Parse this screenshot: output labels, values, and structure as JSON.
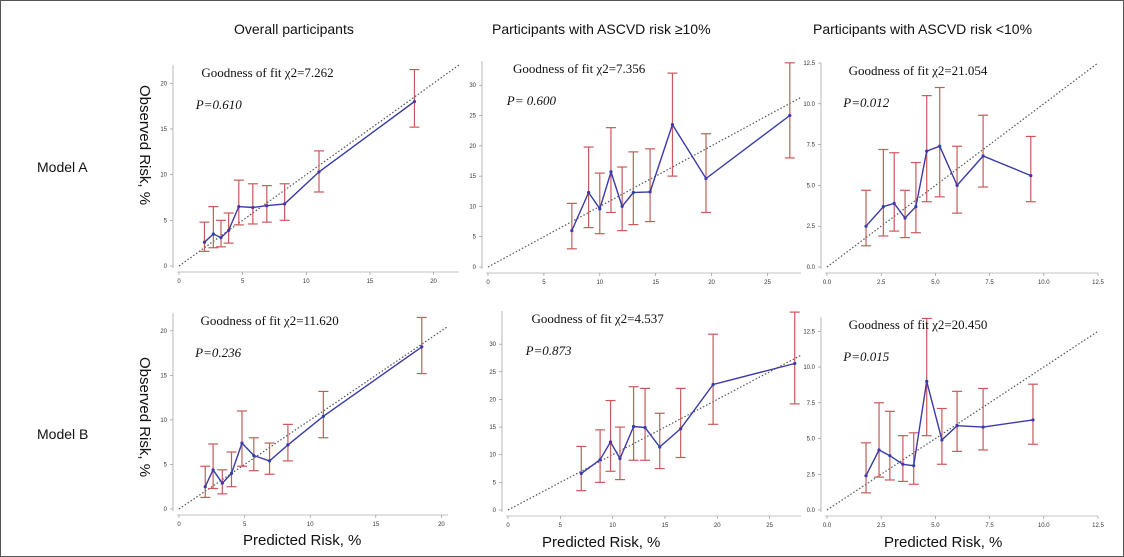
{
  "column_titles": [
    "Overall participants",
    "Participants with ASCVD risk ≥10%",
    "Participants with ASCVD risk <10%"
  ],
  "row_labels": [
    "Model A",
    "Model B"
  ],
  "ylabel": "Observed Risk, %",
  "xlabel": "Predicted Risk, %",
  "colors": {
    "line": "#3a3aa8",
    "errorbar": "#c95a5a",
    "diagonal": "#555555"
  },
  "chart_data": [
    {
      "type": "line",
      "row": 0,
      "col": 0,
      "gof": "Goodness of fit χ2=7.262",
      "p": "P=0.610",
      "xlim": [
        0,
        22
      ],
      "ylim": [
        0,
        22
      ],
      "xticks": [
        0,
        5,
        10,
        15,
        20
      ],
      "yticks": [
        0,
        5,
        10,
        15,
        20
      ],
      "points": [
        {
          "x": 2.0,
          "y": 2.6,
          "lo": 1.6,
          "hi": 4.8
        },
        {
          "x": 2.7,
          "y": 3.5,
          "lo": 2.0,
          "hi": 6.5
        },
        {
          "x": 3.3,
          "y": 3.1,
          "lo": 2.1,
          "hi": 5.0
        },
        {
          "x": 3.9,
          "y": 3.9,
          "lo": 2.5,
          "hi": 5.8
        },
        {
          "x": 4.7,
          "y": 6.5,
          "lo": 4.5,
          "hi": 9.4
        },
        {
          "x": 5.8,
          "y": 6.4,
          "lo": 4.6,
          "hi": 9.0
        },
        {
          "x": 6.9,
          "y": 6.6,
          "lo": 4.8,
          "hi": 8.8
        },
        {
          "x": 8.3,
          "y": 6.8,
          "lo": 5.0,
          "hi": 9.0
        },
        {
          "x": 11.0,
          "y": 10.3,
          "lo": 8.1,
          "hi": 12.6
        },
        {
          "x": 18.5,
          "y": 18.0,
          "lo": 15.2,
          "hi": 21.5
        }
      ]
    },
    {
      "type": "line",
      "row": 0,
      "col": 1,
      "gof": "Goodness of fit χ2=7.356",
      "p": "P= 0.600",
      "xlim": [
        0,
        28
      ],
      "ylim": [
        0,
        34
      ],
      "xticks": [
        0,
        5,
        10,
        15,
        20,
        25
      ],
      "yticks": [
        0,
        5,
        10,
        15,
        20,
        25,
        30
      ],
      "points": [
        {
          "x": 7.5,
          "y": 6.0,
          "lo": 3.0,
          "hi": 10.5
        },
        {
          "x": 9.0,
          "y": 12.3,
          "lo": 6.5,
          "hi": 19.8
        },
        {
          "x": 10.0,
          "y": 9.6,
          "lo": 5.5,
          "hi": 15.5
        },
        {
          "x": 11.0,
          "y": 15.7,
          "lo": 9.0,
          "hi": 23.0
        },
        {
          "x": 12.0,
          "y": 10.0,
          "lo": 6.0,
          "hi": 16.5
        },
        {
          "x": 13.0,
          "y": 12.3,
          "lo": 7.0,
          "hi": 19.0
        },
        {
          "x": 14.5,
          "y": 12.4,
          "lo": 7.5,
          "hi": 19.5
        },
        {
          "x": 16.5,
          "y": 23.5,
          "lo": 15.0,
          "hi": 32.0
        },
        {
          "x": 19.5,
          "y": 14.6,
          "lo": 9.0,
          "hi": 22.0
        },
        {
          "x": 27.0,
          "y": 25.0,
          "lo": 18.0,
          "hi": 33.7
        }
      ]
    },
    {
      "type": "line",
      "row": 0,
      "col": 2,
      "gof": "Goodness of fit χ2=21.054",
      "p": "P=0.012",
      "xlim": [
        0,
        12.5
      ],
      "ylim": [
        0,
        12.5
      ],
      "xticks": [
        0,
        2.5,
        5,
        7.5,
        10,
        12.5
      ],
      "yticks": [
        0,
        2.5,
        5,
        7.5,
        10,
        12.5
      ],
      "xticklabels": [
        "0.0",
        "2.5",
        "5.0",
        "7.5",
        "10.0",
        "12.5"
      ],
      "yticklabels": [
        "0.0",
        "2.5",
        "5.0",
        "7.5",
        "10.0",
        "12.5"
      ],
      "points": [
        {
          "x": 1.8,
          "y": 2.5,
          "lo": 1.3,
          "hi": 4.7
        },
        {
          "x": 2.6,
          "y": 3.7,
          "lo": 1.9,
          "hi": 7.2
        },
        {
          "x": 3.1,
          "y": 3.9,
          "lo": 2.2,
          "hi": 7.0
        },
        {
          "x": 3.6,
          "y": 3.0,
          "lo": 1.8,
          "hi": 4.7
        },
        {
          "x": 4.1,
          "y": 3.7,
          "lo": 2.1,
          "hi": 6.4
        },
        {
          "x": 4.6,
          "y": 7.1,
          "lo": 4.0,
          "hi": 10.5
        },
        {
          "x": 5.2,
          "y": 7.4,
          "lo": 4.3,
          "hi": 11.0
        },
        {
          "x": 6.0,
          "y": 5.0,
          "lo": 3.3,
          "hi": 7.4
        },
        {
          "x": 7.2,
          "y": 6.8,
          "lo": 4.9,
          "hi": 9.3
        },
        {
          "x": 9.4,
          "y": 5.6,
          "lo": 4.0,
          "hi": 8.0
        }
      ]
    },
    {
      "type": "line",
      "row": 1,
      "col": 0,
      "gof": "Goodness of fit χ2=11.620",
      "p": "P=0.236",
      "xlim": [
        0,
        20.5
      ],
      "ylim": [
        0,
        22
      ],
      "xticks": [
        0,
        5,
        10,
        15,
        20
      ],
      "yticks": [
        0,
        5,
        10,
        15,
        20
      ],
      "points": [
        {
          "x": 2.0,
          "y": 2.5,
          "lo": 1.3,
          "hi": 4.8
        },
        {
          "x": 2.6,
          "y": 4.4,
          "lo": 2.3,
          "hi": 7.3
        },
        {
          "x": 3.3,
          "y": 2.9,
          "lo": 1.7,
          "hi": 4.4
        },
        {
          "x": 4.0,
          "y": 4.0,
          "lo": 2.5,
          "hi": 6.4
        },
        {
          "x": 4.8,
          "y": 7.4,
          "lo": 4.8,
          "hi": 11.0
        },
        {
          "x": 5.7,
          "y": 6.0,
          "lo": 4.3,
          "hi": 8.0
        },
        {
          "x": 6.9,
          "y": 5.4,
          "lo": 3.9,
          "hi": 7.4
        },
        {
          "x": 8.3,
          "y": 7.2,
          "lo": 5.4,
          "hi": 9.5
        },
        {
          "x": 11.0,
          "y": 10.4,
          "lo": 8.0,
          "hi": 13.2
        },
        {
          "x": 18.5,
          "y": 18.2,
          "lo": 15.2,
          "hi": 21.5
        }
      ]
    },
    {
      "type": "line",
      "row": 1,
      "col": 1,
      "gof": "Goodness of fit χ2=4.537",
      "p": "P=0.873",
      "xlim": [
        0,
        28
      ],
      "ylim": [
        0,
        36
      ],
      "xticks": [
        0,
        5,
        10,
        15,
        20,
        25
      ],
      "yticks": [
        0,
        5,
        10,
        15,
        20,
        25,
        30
      ],
      "points": [
        {
          "x": 7.0,
          "y": 6.6,
          "lo": 3.5,
          "hi": 11.5
        },
        {
          "x": 8.8,
          "y": 9.1,
          "lo": 5.0,
          "hi": 14.5
        },
        {
          "x": 9.8,
          "y": 12.3,
          "lo": 7.0,
          "hi": 19.8
        },
        {
          "x": 10.7,
          "y": 9.3,
          "lo": 5.5,
          "hi": 15.0
        },
        {
          "x": 12.0,
          "y": 15.1,
          "lo": 9.0,
          "hi": 22.3
        },
        {
          "x": 13.1,
          "y": 14.9,
          "lo": 9.0,
          "hi": 22.0
        },
        {
          "x": 14.5,
          "y": 11.4,
          "lo": 7.5,
          "hi": 17.5
        },
        {
          "x": 16.5,
          "y": 14.7,
          "lo": 9.5,
          "hi": 22.0
        },
        {
          "x": 19.6,
          "y": 22.7,
          "lo": 15.5,
          "hi": 31.8
        },
        {
          "x": 27.4,
          "y": 26.5,
          "lo": 19.2,
          "hi": 35.8
        }
      ]
    },
    {
      "type": "line",
      "row": 1,
      "col": 2,
      "gof": "Goodness of fit χ2=20.450",
      "p": "P=0.015",
      "xlim": [
        0,
        12.5
      ],
      "ylim": [
        0,
        13.5
      ],
      "xticks": [
        0,
        2.5,
        5,
        7.5,
        10,
        12.5
      ],
      "yticks": [
        0,
        2.5,
        5,
        7.5,
        10,
        12.5
      ],
      "xticklabels": [
        "0.0",
        "2.5",
        "5.0",
        "7.5",
        "10.0",
        "12.5"
      ],
      "yticklabels": [
        "0.0",
        "2.5",
        "5.0",
        "7.5",
        "10.0",
        "12.5"
      ],
      "points": [
        {
          "x": 1.8,
          "y": 2.4,
          "lo": 1.2,
          "hi": 4.7
        },
        {
          "x": 2.4,
          "y": 4.2,
          "lo": 2.3,
          "hi": 7.5
        },
        {
          "x": 2.9,
          "y": 3.8,
          "lo": 2.1,
          "hi": 6.9
        },
        {
          "x": 3.5,
          "y": 3.2,
          "lo": 2.0,
          "hi": 5.2
        },
        {
          "x": 4.0,
          "y": 3.1,
          "lo": 1.8,
          "hi": 5.4
        },
        {
          "x": 4.6,
          "y": 9.0,
          "lo": 5.2,
          "hi": 13.4
        },
        {
          "x": 5.3,
          "y": 4.9,
          "lo": 3.2,
          "hi": 7.1
        },
        {
          "x": 6.0,
          "y": 5.9,
          "lo": 4.1,
          "hi": 8.3
        },
        {
          "x": 7.2,
          "y": 5.8,
          "lo": 4.2,
          "hi": 8.5
        },
        {
          "x": 9.5,
          "y": 6.3,
          "lo": 4.6,
          "hi": 8.8
        }
      ]
    }
  ]
}
